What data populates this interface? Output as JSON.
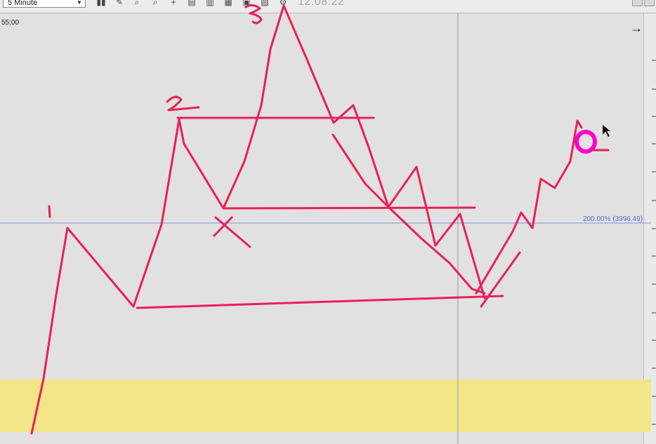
{
  "toolbar": {
    "interval": "5 Minute",
    "clock": "12:08:22",
    "icons": [
      "bar-chart-icon",
      "draw-pen-icon",
      "zoom-in-icon",
      "zoom-out-icon",
      "crosshair-icon",
      "properties-icon",
      "bar-style-icon",
      "image-icon",
      "pin-icon"
    ]
  },
  "chart": {
    "time_label": "55:00",
    "scroll_arrow": "→",
    "fib_label": "200.00% (3996.49)",
    "colors": {
      "background": "#e1e1e1",
      "highlight_band": "#f2e688",
      "fib_line": "#7f96e6",
      "drawing": "#e8205a",
      "cursor_highlight": "#ff00cc"
    }
  },
  "annotations": {
    "labels": [
      "1",
      "2",
      "3"
    ]
  }
}
